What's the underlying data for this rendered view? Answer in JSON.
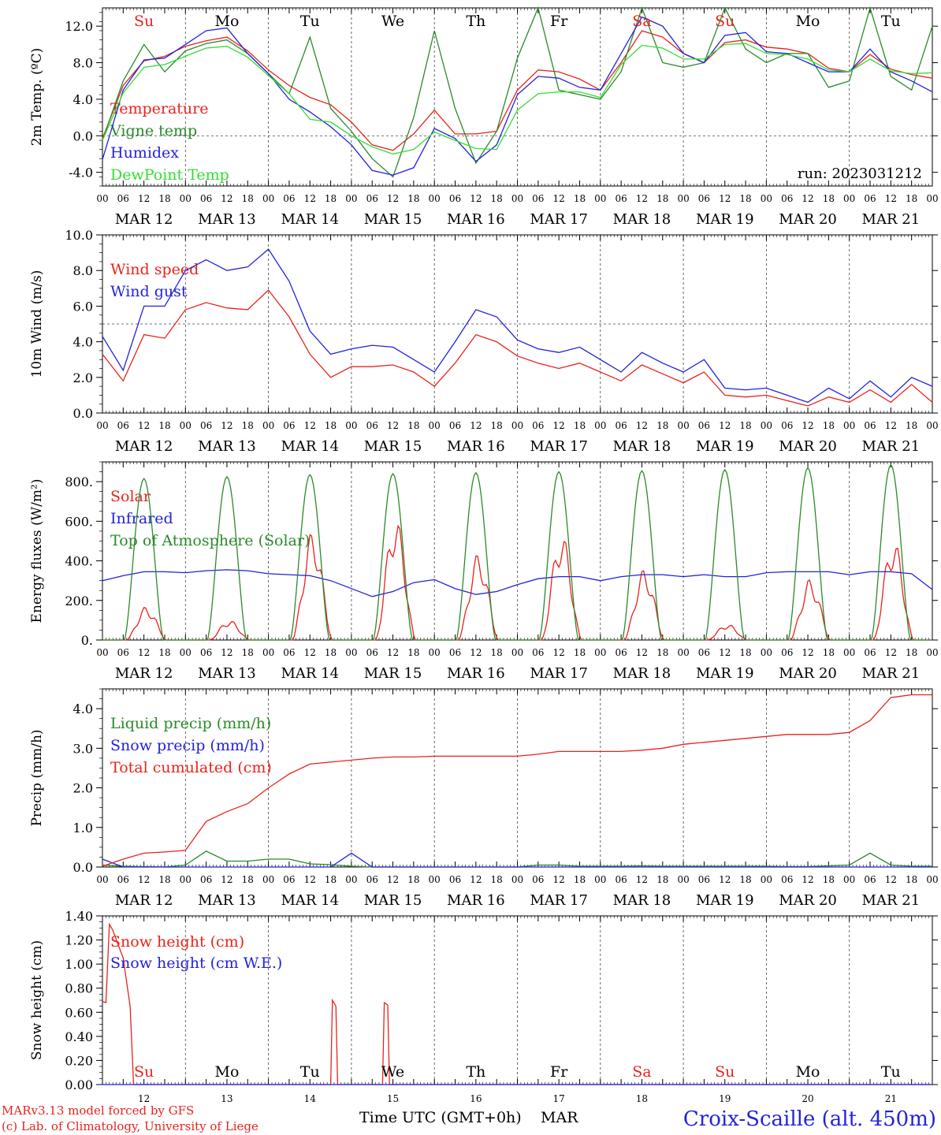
{
  "meta": {
    "run": "run: 2023031212",
    "credit_line1": "MARv3.13 model forced by GFS",
    "credit_line2": "(c) Lab. of Climatology, University of Liege",
    "xaxis_title": "Time UTC (GMT+0h)",
    "xaxis_month": "MAR",
    "station": "Croix-Scaille (alt. 450m)"
  },
  "time_axis": {
    "hour_labels": [
      "00",
      "06",
      "12",
      "18"
    ],
    "end_label": "00",
    "date_labels": [
      "MAR 12",
      "MAR 13",
      "MAR 14",
      "MAR 15",
      "MAR 16",
      "MAR 17",
      "MAR 18",
      "MAR 19",
      "MAR 20",
      "MAR 21"
    ],
    "day_numbers": [
      "12",
      "13",
      "14",
      "15",
      "16",
      "17",
      "18",
      "19",
      "20",
      "21"
    ],
    "weekdays": [
      "Su",
      "Mo",
      "Tu",
      "We",
      "Th",
      "Fr",
      "Sa",
      "Su",
      "Mo",
      "Tu"
    ],
    "weekday_colors": [
      "#e8231c",
      "#000000",
      "#000000",
      "#000000",
      "#000000",
      "#000000",
      "#e8231c",
      "#e8231c",
      "#000000",
      "#000000"
    ]
  },
  "colors": {
    "red": "#e8231c",
    "dark_green": "#2a8a2a",
    "blue": "#2222dd",
    "light_green": "#33dd33"
  },
  "chart_data": [
    {
      "type": "line",
      "ylabel": "2m Temp. (ºC)",
      "ylim": [
        -5.5,
        14
      ],
      "yticks": [
        -4,
        0,
        4,
        8,
        12
      ],
      "ytick_labels": [
        "-4.0",
        "0.0",
        "4.0",
        "8.0",
        "12.0"
      ],
      "reference_line": 0,
      "x_hours": [
        0,
        6,
        12,
        18,
        24,
        30,
        36,
        42,
        48,
        54,
        60,
        66,
        72,
        78,
        84,
        90,
        96,
        102,
        108,
        114,
        120,
        126,
        132,
        138,
        144,
        150,
        156,
        162,
        168,
        174,
        180,
        186,
        192,
        198,
        204,
        210,
        216,
        222,
        228,
        234,
        240
      ],
      "series": [
        {
          "name": "Temperature",
          "color": "#e8231c",
          "values": [
            -0.3,
            5.5,
            8.2,
            8.7,
            9.8,
            10.4,
            10.8,
            9.3,
            7.2,
            5.5,
            4.2,
            3.4,
            1.5,
            -1.0,
            -1.6,
            0.2,
            2.8,
            0.2,
            0.2,
            0.5,
            5.0,
            7.2,
            7.0,
            6.2,
            5.0,
            8.0,
            11.5,
            10.8,
            9.0,
            8.0,
            10.2,
            10.5,
            9.7,
            9.5,
            9.0,
            7.4,
            7.0,
            8.9,
            7.3,
            6.7,
            6.3
          ]
        },
        {
          "name": "Vigne temp",
          "color": "#2a8a2a",
          "values": [
            -0.5,
            6.0,
            10.0,
            7.0,
            9.3,
            10.1,
            10.5,
            9.0,
            6.8,
            4.6,
            10.8,
            3.0,
            0.5,
            -2.5,
            -4.5,
            2.0,
            11.5,
            3.0,
            -3.0,
            0.5,
            8.5,
            14.0,
            5.0,
            4.5,
            4.0,
            7.0,
            14.5,
            8.0,
            7.5,
            8.0,
            14.0,
            9.5,
            8.0,
            9.0,
            9.0,
            5.3,
            6.0,
            14.0,
            6.5,
            5.0,
            12.0
          ]
        },
        {
          "name": "Humidex",
          "color": "#2222dd",
          "values": [
            -2.6,
            5.0,
            8.3,
            8.5,
            10.0,
            11.5,
            11.8,
            9.0,
            6.8,
            4.0,
            2.6,
            1.0,
            -1.0,
            -3.8,
            -4.3,
            -3.5,
            0.8,
            -0.3,
            -2.8,
            -1.0,
            4.5,
            6.5,
            6.3,
            5.3,
            5.0,
            9.0,
            13.0,
            12.0,
            9.0,
            8.0,
            11.0,
            11.3,
            9.2,
            9.0,
            8.0,
            7.0,
            7.0,
            9.5,
            7.0,
            6.0,
            4.8
          ]
        },
        {
          "name": "DewPoint Temp",
          "color": "#33dd33",
          "values": [
            -0.5,
            4.7,
            7.5,
            7.8,
            8.7,
            9.6,
            9.8,
            8.6,
            6.6,
            4.6,
            1.8,
            1.5,
            0.0,
            -1.2,
            -2.0,
            -1.5,
            0.4,
            -0.5,
            -1.4,
            -1.5,
            2.8,
            4.6,
            4.8,
            4.8,
            4.2,
            7.8,
            9.9,
            9.6,
            8.4,
            8.4,
            10.0,
            10.1,
            9.0,
            8.9,
            8.4,
            7.2,
            7.0,
            8.4,
            7.1,
            6.8,
            6.9
          ]
        }
      ]
    },
    {
      "type": "line",
      "ylabel": "10m Wind (m/s)",
      "ylim": [
        0,
        10
      ],
      "yticks": [
        0,
        2,
        4,
        6,
        8,
        10
      ],
      "ytick_labels": [
        "0.0",
        "2.0",
        "4.0",
        "6.0",
        "8.0",
        "10.0"
      ],
      "reference_line": 5,
      "x_hours": [
        0,
        6,
        12,
        18,
        24,
        30,
        36,
        42,
        48,
        54,
        60,
        66,
        72,
        78,
        84,
        90,
        96,
        102,
        108,
        114,
        120,
        126,
        132,
        138,
        144,
        150,
        156,
        162,
        168,
        174,
        180,
        186,
        192,
        198,
        204,
        210,
        216,
        222,
        228,
        234,
        240
      ],
      "series": [
        {
          "name": "Wind speed",
          "color": "#e8231c",
          "values": [
            3.3,
            1.8,
            4.4,
            4.2,
            5.8,
            6.2,
            5.9,
            5.8,
            6.9,
            5.4,
            3.3,
            2.0,
            2.6,
            2.6,
            2.7,
            2.3,
            1.5,
            2.8,
            4.4,
            4.0,
            3.2,
            2.8,
            2.5,
            2.8,
            2.3,
            1.8,
            2.7,
            2.2,
            1.7,
            2.3,
            1.0,
            0.9,
            1.0,
            0.7,
            0.4,
            0.9,
            0.6,
            1.3,
            0.6,
            1.6,
            0.6
          ]
        },
        {
          "name": "Wind gust",
          "color": "#2222dd",
          "values": [
            4.3,
            2.4,
            6.0,
            6.0,
            8.0,
            8.6,
            8.0,
            8.2,
            9.2,
            7.4,
            4.6,
            3.3,
            3.6,
            3.8,
            3.7,
            3.0,
            2.3,
            4.0,
            5.8,
            5.4,
            4.1,
            3.6,
            3.4,
            3.7,
            3.0,
            2.3,
            3.4,
            2.8,
            2.3,
            3.0,
            1.4,
            1.3,
            1.4,
            1.0,
            0.6,
            1.4,
            0.8,
            1.8,
            0.9,
            2.0,
            1.5
          ]
        }
      ]
    },
    {
      "type": "line",
      "ylabel": "Energy fluxes (W/m²)",
      "ylim": [
        0,
        900
      ],
      "yticks": [
        0,
        200,
        400,
        600,
        800
      ],
      "ytick_labels": [
        "0.",
        "200.",
        "400.",
        "600.",
        "800."
      ],
      "series": [
        {
          "name": "Solar",
          "color": "#e8231c",
          "daily_peak_hour": 13,
          "daily_peaks": [
            170,
            100,
            550,
            620,
            440,
            540,
            360,
            80,
            310,
            510
          ]
        },
        {
          "name": "Infrared",
          "color": "#2222dd",
          "x_hours": [
            0,
            6,
            12,
            18,
            24,
            30,
            36,
            42,
            48,
            54,
            60,
            66,
            72,
            78,
            84,
            90,
            96,
            102,
            108,
            114,
            120,
            126,
            132,
            138,
            144,
            150,
            156,
            162,
            168,
            174,
            180,
            186,
            192,
            198,
            204,
            210,
            216,
            222,
            228,
            234,
            240
          ],
          "values": [
            300,
            325,
            345,
            345,
            340,
            350,
            355,
            350,
            335,
            330,
            325,
            300,
            260,
            220,
            245,
            290,
            305,
            260,
            230,
            245,
            280,
            310,
            320,
            320,
            300,
            320,
            330,
            330,
            320,
            330,
            320,
            320,
            340,
            345,
            345,
            345,
            330,
            345,
            345,
            335,
            255
          ]
        },
        {
          "name": "Top of Atmosphere (Solar)",
          "color": "#2a8a2a",
          "daily_peak_hour": 12,
          "daily_peaks": [
            815,
            825,
            835,
            840,
            845,
            850,
            855,
            860,
            870,
            885
          ]
        }
      ]
    },
    {
      "type": "line",
      "ylabel": "Precip (mm/h)",
      "ylim": [
        0,
        4.5
      ],
      "yticks": [
        0,
        1,
        2,
        3,
        4
      ],
      "ytick_labels": [
        "0.0",
        "1.0",
        "2.0",
        "3.0",
        "4.0"
      ],
      "x_hours": [
        0,
        6,
        12,
        18,
        24,
        30,
        36,
        42,
        48,
        54,
        60,
        66,
        72,
        78,
        84,
        90,
        96,
        102,
        108,
        114,
        120,
        126,
        132,
        138,
        144,
        150,
        156,
        162,
        168,
        174,
        180,
        186,
        192,
        198,
        204,
        210,
        216,
        222,
        228,
        234,
        240
      ],
      "series": [
        {
          "name": "Liquid precip (mm/h)",
          "color": "#2a8a2a",
          "values": [
            0.05,
            0.02,
            0.01,
            0.0,
            0.05,
            0.4,
            0.15,
            0.15,
            0.2,
            0.2,
            0.08,
            0.06,
            0.02,
            0.0,
            0.0,
            0.0,
            0.0,
            0.0,
            0.0,
            0.0,
            0.0,
            0.05,
            0.05,
            0.02,
            0.02,
            0.02,
            0.03,
            0.02,
            0.02,
            0.02,
            0.02,
            0.02,
            0.02,
            0.01,
            0.01,
            0.03,
            0.05,
            0.35,
            0.05,
            0.02,
            0.02
          ]
        },
        {
          "name": "Snow precip (mm/h)",
          "color": "#2222dd",
          "values": [
            0.2,
            0.0,
            0.0,
            0.0,
            0.0,
            0.0,
            0.0,
            0.0,
            0.0,
            0.0,
            0.0,
            0.0,
            0.35,
            0.0,
            0.0,
            0.0,
            0.0,
            0.0,
            0.0,
            0.0,
            0.0,
            0.0,
            0.0,
            0.0,
            0.0,
            0.0,
            0.0,
            0.0,
            0.0,
            0.0,
            0.0,
            0.0,
            0.0,
            0.0,
            0.0,
            0.0,
            0.0,
            0.0,
            0.0,
            0.0,
            0.0
          ]
        },
        {
          "name": "Total cumulated (cm)",
          "color": "#e8231c",
          "values": [
            0.02,
            0.2,
            0.35,
            0.38,
            0.42,
            1.15,
            1.4,
            1.6,
            2.0,
            2.35,
            2.6,
            2.65,
            2.7,
            2.75,
            2.78,
            2.78,
            2.8,
            2.8,
            2.8,
            2.8,
            2.8,
            2.85,
            2.92,
            2.92,
            2.92,
            2.92,
            2.95,
            3.0,
            3.1,
            3.15,
            3.2,
            3.25,
            3.3,
            3.35,
            3.35,
            3.35,
            3.4,
            3.7,
            4.28,
            4.35,
            4.35
          ]
        }
      ]
    },
    {
      "type": "line",
      "ylabel": "Snow height (cm)",
      "ylim": [
        0,
        1.4
      ],
      "yticks": [
        0,
        0.2,
        0.4,
        0.6,
        0.8,
        1.0,
        1.2,
        1.4
      ],
      "ytick_labels": [
        "0.00",
        "0.20",
        "0.40",
        "0.60",
        "0.80",
        "1.00",
        "1.20",
        "1.40"
      ],
      "series": [
        {
          "name": "Snow height (cm)",
          "color": "#e8231c",
          "x_hours": [
            0,
            1,
            2,
            3,
            6,
            8,
            9,
            10,
            11,
            66,
            66.5,
            67.5,
            68,
            81,
            81.5,
            82.5,
            83,
            240
          ],
          "values": [
            0.69,
            0.68,
            1.33,
            1.28,
            1.05,
            0.65,
            0.0,
            0.0,
            0.0,
            0.0,
            0.7,
            0.65,
            0.0,
            0.0,
            0.68,
            0.66,
            0.0,
            0.0
          ]
        },
        {
          "name": "Snow height (cm W.E.)",
          "color": "#2222dd",
          "x_hours": [
            0,
            240
          ],
          "values": [
            0.0,
            0.0
          ]
        }
      ]
    }
  ]
}
